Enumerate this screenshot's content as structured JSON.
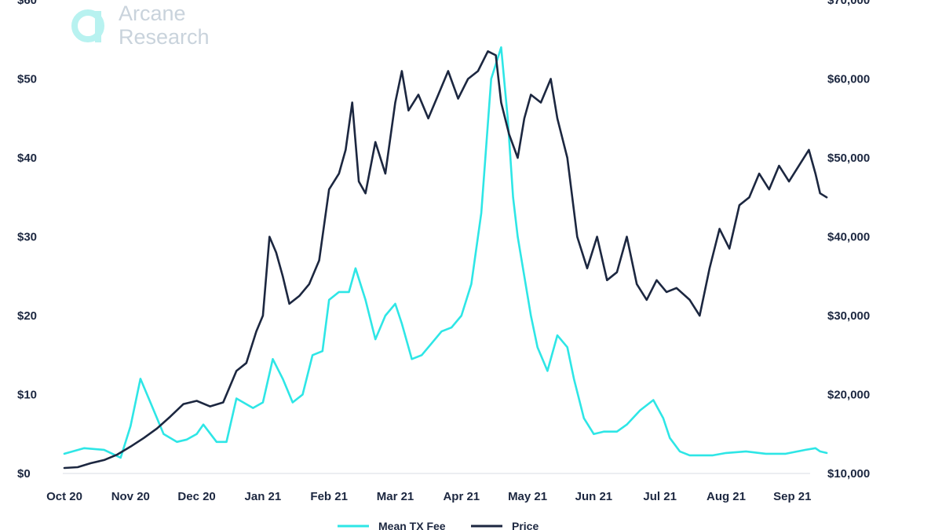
{
  "logo": {
    "line1": "Arcane",
    "line2": "Research"
  },
  "colors": {
    "fee": "#2ee6e6",
    "price": "#1c2740",
    "logo": "#b8f2f0"
  },
  "chart_data": {
    "type": "line",
    "x_ticks": [
      "Oct 20",
      "Nov 20",
      "Dec 20",
      "Jan 21",
      "Feb 21",
      "Mar 21",
      "Apr 21",
      "May 21",
      "Jun 21",
      "Jul 21",
      "Aug 21",
      "Sep 21"
    ],
    "left_ticks": [
      "$0",
      "$10",
      "$20",
      "$30",
      "$40",
      "$50",
      "$60"
    ],
    "right_ticks": [
      "$10,000",
      "$20,000",
      "$30,000",
      "$40,000",
      "$50,000",
      "$60,000",
      "$70,000"
    ],
    "left_ylim": [
      0,
      60
    ],
    "right_ylim": [
      10000,
      70000
    ],
    "legend": "top-bottom",
    "series": [
      {
        "name": "Mean TX Fee",
        "axis": "left",
        "x": [
          0.0,
          0.3,
          0.6,
          0.85,
          1.0,
          1.15,
          1.3,
          1.5,
          1.7,
          1.85,
          2.0,
          2.1,
          2.3,
          2.45,
          2.6,
          2.85,
          3.0,
          3.15,
          3.3,
          3.45,
          3.6,
          3.75,
          3.9,
          4.0,
          4.15,
          4.3,
          4.4,
          4.55,
          4.7,
          4.85,
          5.0,
          5.1,
          5.25,
          5.4,
          5.55,
          5.7,
          5.85,
          6.0,
          6.15,
          6.3,
          6.45,
          6.6,
          6.7,
          6.78,
          6.85,
          6.95,
          7.05,
          7.15,
          7.3,
          7.45,
          7.6,
          7.7,
          7.85,
          8.0,
          8.15,
          8.35,
          8.5,
          8.7,
          8.9,
          9.05,
          9.15,
          9.3,
          9.45,
          9.65,
          9.8,
          10.0,
          10.3,
          10.6,
          10.9,
          11.2,
          11.35,
          11.42,
          11.52
        ],
        "values": [
          2.5,
          3.2,
          3.0,
          2.0,
          6.0,
          12.0,
          9.0,
          5.0,
          4.0,
          4.3,
          5.0,
          6.2,
          4.0,
          4.0,
          9.5,
          8.3,
          9.0,
          14.5,
          12.0,
          9.0,
          10.0,
          15.0,
          15.5,
          22.0,
          23.0,
          23.0,
          26.0,
          22.0,
          17.0,
          20.0,
          21.5,
          19.0,
          14.5,
          15.0,
          16.5,
          18.0,
          18.5,
          20.0,
          24.0,
          33.0,
          50.0,
          54.0,
          45.0,
          35.0,
          30.0,
          25.0,
          20.0,
          16.0,
          13.0,
          17.5,
          16.0,
          12.0,
          7.0,
          5.0,
          5.3,
          5.3,
          6.2,
          8.0,
          9.3,
          7.0,
          4.5,
          2.8,
          2.3,
          2.3,
          2.3,
          2.6,
          2.8,
          2.5,
          2.5,
          3.0,
          3.2,
          2.8,
          2.6
        ]
      },
      {
        "name": "Price",
        "axis": "right",
        "x": [
          0.0,
          0.2,
          0.4,
          0.6,
          0.8,
          1.0,
          1.2,
          1.4,
          1.6,
          1.8,
          2.0,
          2.2,
          2.4,
          2.6,
          2.75,
          2.9,
          3.0,
          3.1,
          3.2,
          3.3,
          3.4,
          3.55,
          3.7,
          3.85,
          4.0,
          4.15,
          4.25,
          4.35,
          4.45,
          4.55,
          4.7,
          4.85,
          5.0,
          5.1,
          5.2,
          5.35,
          5.5,
          5.65,
          5.8,
          5.95,
          6.1,
          6.25,
          6.4,
          6.52,
          6.6,
          6.72,
          6.85,
          6.95,
          7.05,
          7.2,
          7.35,
          7.45,
          7.6,
          7.75,
          7.9,
          8.05,
          8.2,
          8.35,
          8.5,
          8.65,
          8.8,
          8.95,
          9.1,
          9.25,
          9.45,
          9.6,
          9.75,
          9.9,
          10.05,
          10.2,
          10.35,
          10.5,
          10.65,
          10.8,
          10.95,
          11.1,
          11.25,
          11.35,
          11.42,
          11.52
        ],
        "values": [
          10700,
          10800,
          11300,
          11700,
          12400,
          13400,
          14500,
          15700,
          17200,
          18800,
          19200,
          18500,
          19000,
          23000,
          24000,
          28000,
          30000,
          40000,
          38000,
          35000,
          31500,
          32500,
          34000,
          37000,
          46000,
          48000,
          51000,
          57000,
          47000,
          45500,
          52000,
          48000,
          57000,
          61000,
          56000,
          58000,
          55000,
          58000,
          61000,
          57500,
          60000,
          61000,
          63500,
          63000,
          57000,
          53000,
          50000,
          55000,
          58000,
          57000,
          60000,
          55000,
          50000,
          40000,
          36000,
          40000,
          34500,
          35500,
          40000,
          34000,
          32000,
          34500,
          33000,
          33500,
          32000,
          30000,
          36000,
          41000,
          38500,
          44000,
          45000,
          48000,
          46000,
          49000,
          47000,
          49000,
          51000,
          48000,
          45500,
          45000
        ]
      }
    ]
  }
}
